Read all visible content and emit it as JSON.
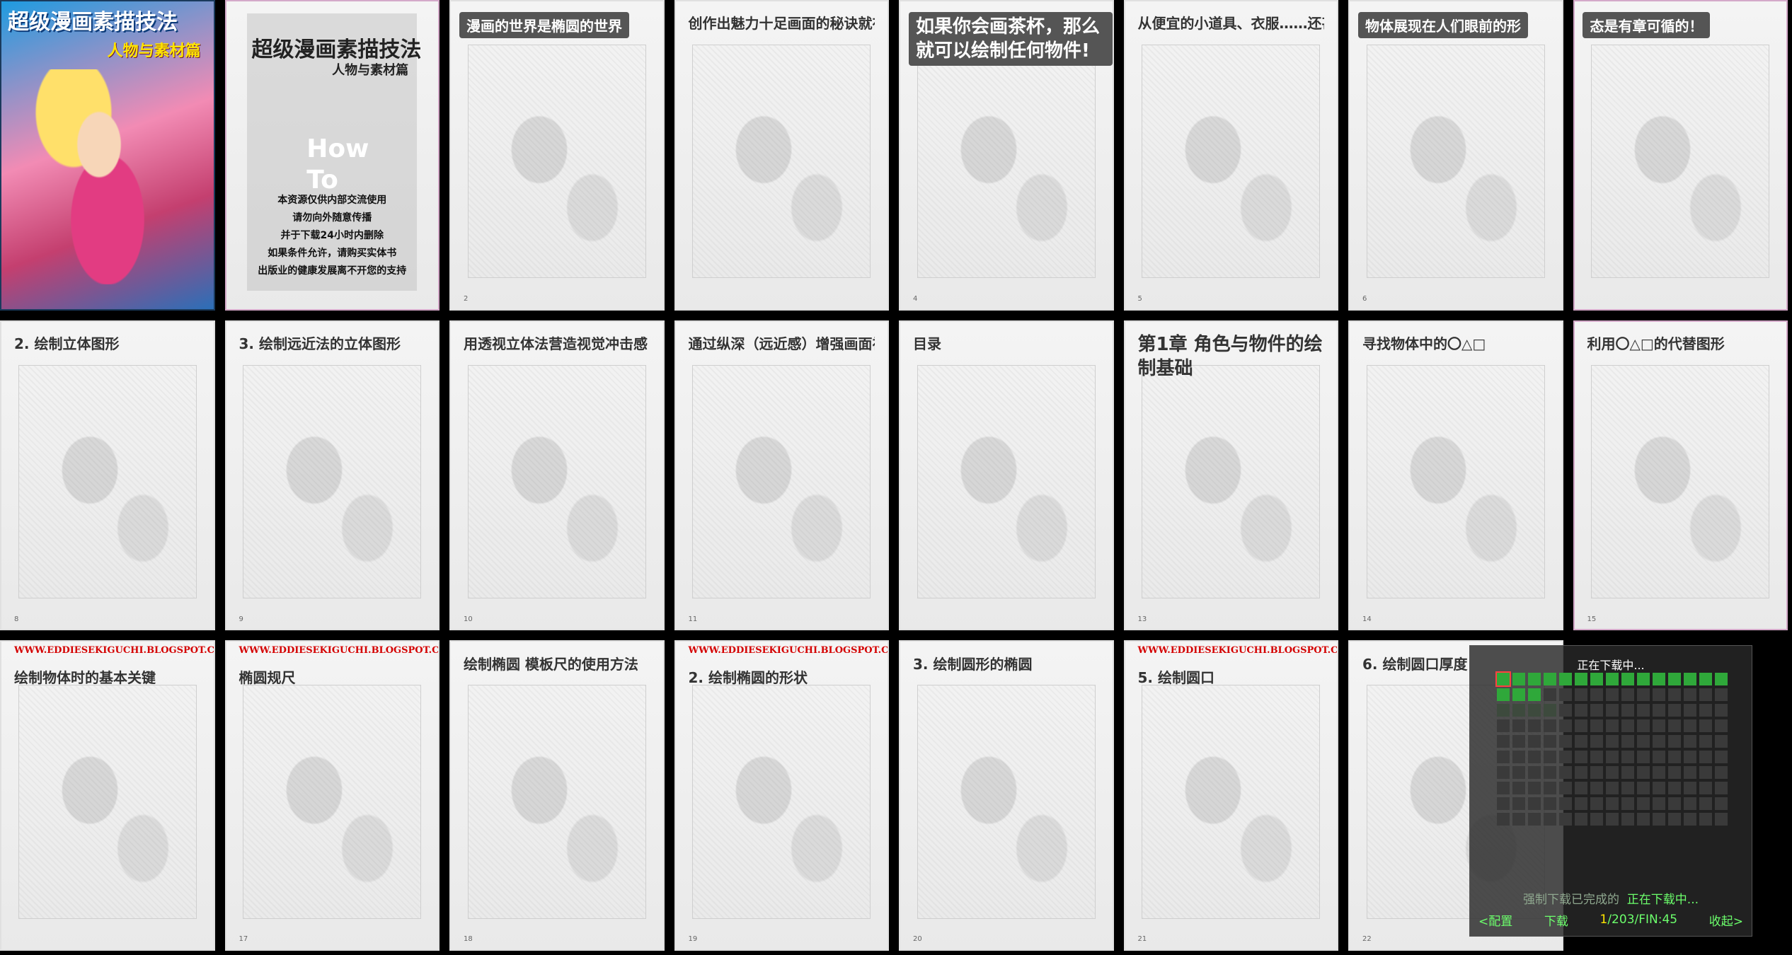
{
  "cover": {
    "title": "超级漫画素描技法",
    "subtitle": "人物与素材篇"
  },
  "title_page": {
    "title": "超级漫画素描技法",
    "subtitle": "人物与素材篇",
    "howto": "How\nTo",
    "notice": [
      "本资源仅供内部交流使用",
      "请勿向外随意传播",
      "并于下载24小时内删除",
      "如果条件允许，请购买实体书",
      "出版业的健康发展离不开您的支持"
    ]
  },
  "pages": [
    {
      "title": "漫画的世界是椭圆的世界",
      "style": "dark",
      "num": "2"
    },
    {
      "title": "创作出魅力十足画面的秘诀就在于能否善于利用椭圆（曲线）",
      "style": "plain",
      "num": ""
    },
    {
      "title": "如果你会画茶杯，那么就可以绘制任何物件!",
      "style": "dark-big",
      "num": "4"
    },
    {
      "title": "从便宜的小道具、衣服……还甚至是角色均可以套用的物件",
      "style": "plain",
      "num": "5"
    },
    {
      "title": "物体展现在人们眼前的形",
      "style": "dark",
      "num": "6"
    },
    {
      "title": "态是有章可循的！",
      "style": "dark",
      "num": ""
    },
    {
      "title": "2. 绘制立体图形",
      "style": "plain",
      "num": "8"
    },
    {
      "title": "3. 绘制远近法的立体图形",
      "style": "plain",
      "num": "9"
    },
    {
      "title": "用透视立体法营造视觉冲击感",
      "style": "plain",
      "num": "10"
    },
    {
      "title": "通过纵深（远近感）增强画面视觉效果",
      "style": "plain",
      "num": "11"
    },
    {
      "title": "目录",
      "style": "plain",
      "num": ""
    },
    {
      "title": "第1章 角色与物件的绘制基础",
      "style": "big",
      "num": "13"
    },
    {
      "title": "寻找物体中的〇△□",
      "style": "plain",
      "num": "14"
    },
    {
      "title": "利用〇△□的代替图形",
      "style": "plain",
      "num": "15"
    },
    {
      "title": "绘制物体时的基本关键",
      "style": "plain",
      "num": "",
      "url": "WWW.EDDIESEKIGUCHI.BLOGSPOT.COM"
    },
    {
      "title": "椭圆规尺",
      "style": "plain",
      "num": "17",
      "url": "WWW.EDDIESEKIGUCHI.BLOGSPOT.COM"
    },
    {
      "title": "绘制椭圆 模板尺的使用方法",
      "style": "plain",
      "num": "18"
    },
    {
      "title": "2. 绘制椭圆的形状",
      "style": "plain",
      "num": "19",
      "url": "WWW.EDDIESEKIGUCHI.BLOGSPOT.COM"
    },
    {
      "title": "3. 绘制圆形的椭圆",
      "style": "plain",
      "num": "20"
    },
    {
      "title": "5. 绘制圆口",
      "style": "plain",
      "num": "21",
      "url": "WWW.EDDIESEKIGUCHI.BLOGSPOT.COM"
    },
    {
      "title": "6. 绘制圆口厚度",
      "style": "plain",
      "num": "22"
    }
  ],
  "overlay": {
    "title": "正在下载中...",
    "status_done": "强制下载已完成的",
    "status_active": "正在下载中...",
    "menu_config": "<配置",
    "menu_download": "下载",
    "progress_current": "1",
    "progress_total": "/203/FIN:45",
    "menu_collapse": "收起>",
    "cells_done": 18,
    "cells_total": 150
  }
}
